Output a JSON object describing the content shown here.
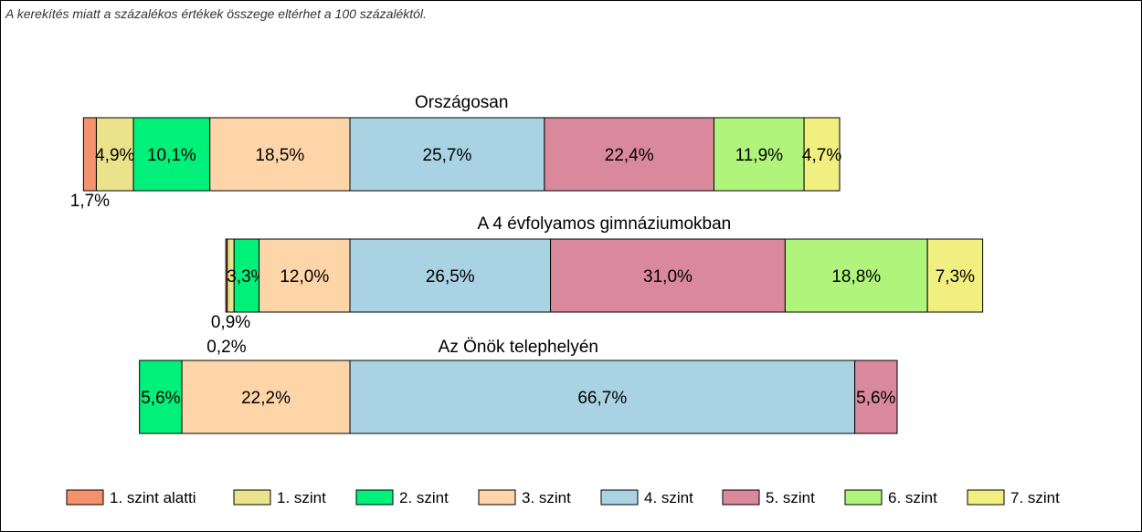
{
  "note": "A kerekítés miatt a  százalékos értékek összege eltérhet a 100 százaléktól.",
  "chart_data": {
    "type": "bar",
    "orientation": "horizontal",
    "stacked": true,
    "value_unit": "%",
    "legend_position": "bottom",
    "grid": false,
    "categories": [
      "1. szint alatti",
      "1. szint",
      "2. szint",
      "3. szint",
      "4. szint",
      "5. szint",
      "6. szint",
      "7. szint"
    ],
    "colors": [
      "#f4926e",
      "#ebe38b",
      "#00f07a",
      "#fdd5a8",
      "#a9d3e3",
      "#d9899b",
      "#b0f47c",
      "#f0ef80"
    ],
    "bars": [
      {
        "title": "Országosan",
        "values": [
          1.7,
          4.9,
          10.1,
          18.5,
          25.7,
          22.4,
          11.9,
          4.7
        ],
        "labels": [
          "1,7%",
          "4,9%",
          "10,1%",
          "18,5%",
          "25,7%",
          "22,4%",
          "11,9%",
          "4,7%"
        ]
      },
      {
        "title": "A 4 évfolyamos gimnáziumokban",
        "values": [
          0.2,
          0.9,
          3.3,
          12.0,
          26.5,
          31.0,
          18.8,
          7.3
        ],
        "labels": [
          "0,2%",
          "0,9%",
          "3,3%",
          "12,0%",
          "26,5%",
          "31,0%",
          "18,8%",
          "7,3%"
        ]
      },
      {
        "title": "Az Önök telephelyén",
        "values": [
          0,
          0,
          5.6,
          22.2,
          66.7,
          5.6,
          0,
          0
        ],
        "labels": [
          "",
          "",
          "5,6%",
          "22,2%",
          "66,7%",
          "5,6%",
          "",
          ""
        ]
      }
    ]
  }
}
